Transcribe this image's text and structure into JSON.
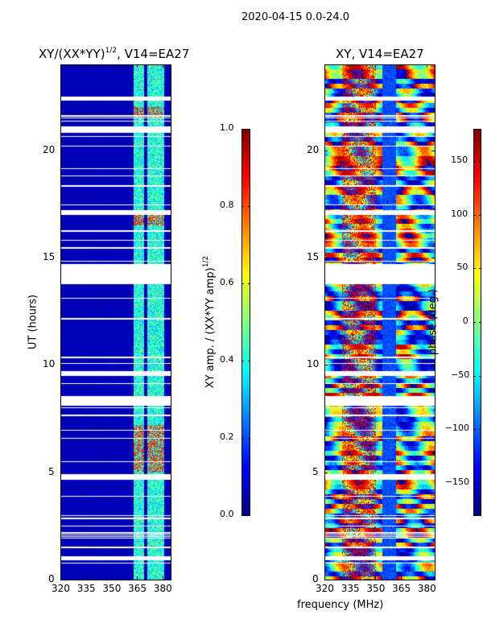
{
  "suptitle": "2020-04-15 0.0-24.0",
  "chart_data": [
    {
      "type": "heatmap",
      "title_main": "XY/(XX*YY)",
      "title_sup": "1/2",
      "title_rest": ", V14=EA27",
      "xlabel": "",
      "ylabel": "UT (hours)",
      "xlim": [
        320,
        384.8
      ],
      "ylim": [
        0,
        24
      ],
      "xticks": [
        "320",
        "335",
        "350",
        "365",
        "380"
      ],
      "xtick_values": [
        320,
        335,
        350,
        365,
        380
      ],
      "yticks": [
        "0",
        "5",
        "10",
        "15",
        "20"
      ],
      "ytick_values": [
        0,
        5,
        10,
        15,
        20
      ],
      "colormap": "jet",
      "colorbar": {
        "label_main": "XY amp. / (XX*YY amp)",
        "label_sup": "1/2",
        "range": [
          0,
          1
        ],
        "ticks": [
          "0.0",
          "0.2",
          "0.4",
          "0.6",
          "0.8",
          "1.0"
        ],
        "tick_values": [
          0,
          0.2,
          0.4,
          0.6,
          0.8,
          1.0
        ]
      },
      "description_values": {
        "background_level": 0.05,
        "bright_bands_mhz": [
          [
            363,
            369
          ],
          [
            371,
            381
          ]
        ],
        "band_level": 0.45,
        "flare_hours": [
          [
            5,
            7.2
          ],
          [
            16.5,
            17
          ],
          [
            21.5,
            22
          ]
        ]
      }
    },
    {
      "type": "heatmap",
      "title_main": "XY, V14=EA27",
      "xlabel": "frequency (MHz)",
      "ylabel": "",
      "xlim": [
        320,
        384.8
      ],
      "ylim": [
        0,
        24
      ],
      "xticks": [
        "320",
        "335",
        "350",
        "365",
        "380"
      ],
      "xtick_values": [
        320,
        335,
        350,
        365,
        380
      ],
      "yticks": [
        "0",
        "5",
        "10",
        "15",
        "20"
      ],
      "ytick_values": [
        0,
        5,
        10,
        15,
        20
      ],
      "colormap": "jet",
      "colorbar": {
        "label_main": "phase (deg.)",
        "range": [
          -180,
          180
        ],
        "ticks": [
          "−150",
          "−100",
          "−50",
          "0",
          "50",
          "100",
          "150"
        ],
        "tick_values": [
          -150,
          -100,
          -50,
          0,
          50,
          100,
          150
        ]
      }
    }
  ],
  "flagged_hours": [
    [
      0.9,
      1.1
    ],
    [
      1.45,
      1.52
    ],
    [
      2.15,
      2.22
    ],
    [
      2.8,
      2.9
    ],
    [
      4.65,
      4.9
    ],
    [
      7.6,
      7.7
    ],
    [
      8.1,
      8.55
    ],
    [
      9.5,
      9.7
    ],
    [
      10.3,
      10.38
    ],
    [
      12.1,
      12.2
    ],
    [
      13.75,
      14.7
    ],
    [
      15.4,
      15.48
    ],
    [
      16.2,
      16.28
    ],
    [
      17.0,
      17.2
    ],
    [
      18.3,
      18.36
    ],
    [
      20.8,
      21.1
    ],
    [
      21.55,
      21.65
    ],
    [
      22.3,
      22.5
    ]
  ]
}
